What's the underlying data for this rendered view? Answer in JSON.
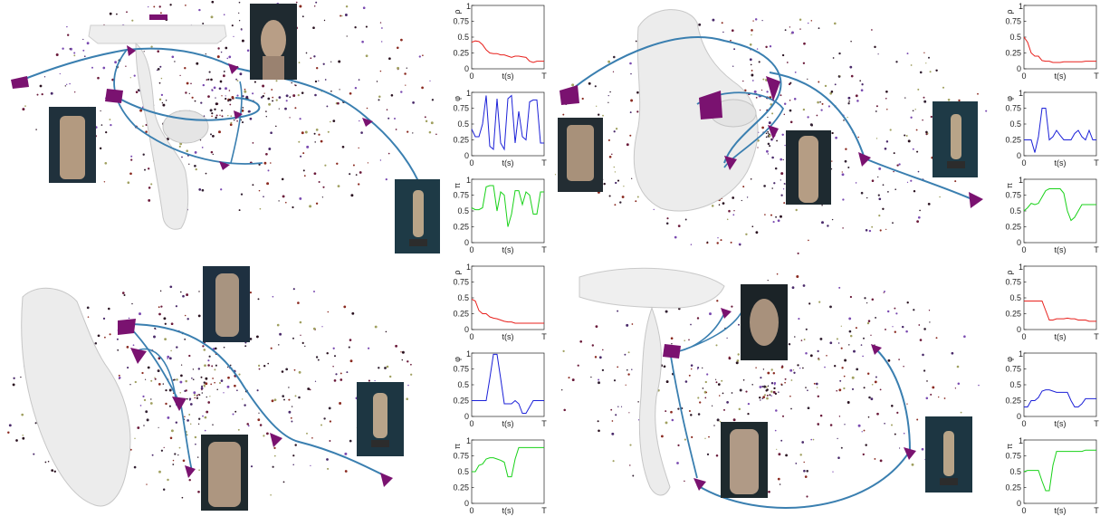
{
  "colors": {
    "rho": "#e8201c",
    "phi": "#1c21d8",
    "pi": "#19d219",
    "trajectory": "#3a7fb0",
    "camera": "#7a1270",
    "statue": "#ececec"
  },
  "axis": {
    "xlabel": "t(s)",
    "xticks": [
      "0",
      "T"
    ],
    "yticks": [
      "0",
      "0.25",
      "0.5",
      "0.75",
      "1"
    ]
  },
  "chart_data": [
    {
      "type": "line",
      "panel": "top-left",
      "x": [
        0,
        0.05,
        0.1,
        0.15,
        0.2,
        0.25,
        0.3,
        0.35,
        0.4,
        0.45,
        0.5,
        0.55,
        0.6,
        0.65,
        0.7,
        0.75,
        0.8,
        0.85,
        0.9,
        0.95,
        1
      ],
      "xlabel": "t(s)",
      "ylim": [
        0,
        1
      ],
      "series": [
        {
          "name": "ρ",
          "values": [
            0.42,
            0.44,
            0.43,
            0.38,
            0.3,
            0.25,
            0.24,
            0.24,
            0.22,
            0.22,
            0.2,
            0.18,
            0.2,
            0.2,
            0.19,
            0.18,
            0.12,
            0.1,
            0.12,
            0.12,
            0.12
          ]
        },
        {
          "name": "φ",
          "values": [
            0.42,
            0.3,
            0.3,
            0.5,
            0.95,
            0.15,
            0.1,
            0.9,
            0.2,
            0.1,
            0.9,
            0.95,
            0.2,
            0.7,
            0.3,
            0.25,
            0.85,
            0.88,
            0.88,
            0.2,
            0.2
          ]
        },
        {
          "name": "π",
          "values": [
            0.55,
            0.52,
            0.52,
            0.55,
            0.88,
            0.9,
            0.9,
            0.5,
            0.8,
            0.75,
            0.25,
            0.45,
            0.82,
            0.82,
            0.6,
            0.8,
            0.75,
            0.45,
            0.45,
            0.8,
            0.8
          ]
        }
      ]
    },
    {
      "type": "line",
      "panel": "top-right",
      "x": [
        0,
        0.05,
        0.1,
        0.15,
        0.2,
        0.25,
        0.3,
        0.35,
        0.4,
        0.45,
        0.5,
        0.55,
        0.6,
        0.65,
        0.7,
        0.75,
        0.8,
        0.85,
        0.9,
        0.95,
        1
      ],
      "xlabel": "t(s)",
      "ylim": [
        0,
        1
      ],
      "series": [
        {
          "name": "ρ",
          "values": [
            0.5,
            0.42,
            0.25,
            0.2,
            0.2,
            0.13,
            0.12,
            0.12,
            0.1,
            0.1,
            0.1,
            0.11,
            0.11,
            0.11,
            0.11,
            0.11,
            0.11,
            0.12,
            0.12,
            0.12,
            0.12
          ]
        },
        {
          "name": "φ",
          "values": [
            0.25,
            0.25,
            0.25,
            0.05,
            0.3,
            0.75,
            0.75,
            0.25,
            0.3,
            0.4,
            0.32,
            0.25,
            0.25,
            0.25,
            0.35,
            0.4,
            0.3,
            0.25,
            0.4,
            0.25,
            0.25
          ]
        },
        {
          "name": "π",
          "values": [
            0.5,
            0.55,
            0.62,
            0.6,
            0.62,
            0.72,
            0.82,
            0.85,
            0.85,
            0.85,
            0.85,
            0.78,
            0.5,
            0.35,
            0.4,
            0.5,
            0.6,
            0.6,
            0.6,
            0.6,
            0.6
          ]
        }
      ]
    },
    {
      "type": "line",
      "panel": "bottom-left",
      "x": [
        0,
        0.05,
        0.1,
        0.15,
        0.2,
        0.25,
        0.3,
        0.35,
        0.4,
        0.45,
        0.5,
        0.55,
        0.6,
        0.65,
        0.7,
        0.75,
        0.8,
        0.85,
        0.9,
        0.95,
        1
      ],
      "xlabel": "t(s)",
      "ylim": [
        0,
        1
      ],
      "series": [
        {
          "name": "ρ",
          "values": [
            0.48,
            0.45,
            0.3,
            0.25,
            0.25,
            0.2,
            0.18,
            0.17,
            0.15,
            0.13,
            0.12,
            0.12,
            0.1,
            0.1,
            0.1,
            0.1,
            0.1,
            0.1,
            0.1,
            0.1,
            0.1
          ]
        },
        {
          "name": "φ",
          "values": [
            0.25,
            0.25,
            0.25,
            0.25,
            0.25,
            0.6,
            0.98,
            0.98,
            0.6,
            0.2,
            0.2,
            0.2,
            0.25,
            0.2,
            0.05,
            0.05,
            0.15,
            0.25,
            0.25,
            0.25,
            0.25
          ]
        },
        {
          "name": "π",
          "values": [
            0.5,
            0.5,
            0.6,
            0.62,
            0.7,
            0.72,
            0.72,
            0.7,
            0.68,
            0.65,
            0.42,
            0.42,
            0.7,
            0.88,
            0.88,
            0.88,
            0.88,
            0.88,
            0.88,
            0.88,
            0.88
          ]
        }
      ]
    },
    {
      "type": "line",
      "panel": "bottom-right",
      "x": [
        0,
        0.05,
        0.1,
        0.15,
        0.2,
        0.25,
        0.3,
        0.35,
        0.4,
        0.45,
        0.5,
        0.55,
        0.6,
        0.65,
        0.7,
        0.75,
        0.8,
        0.85,
        0.9,
        0.95,
        1
      ],
      "xlabel": "t(s)",
      "ylim": [
        0,
        1
      ],
      "series": [
        {
          "name": "ρ",
          "values": [
            0.45,
            0.45,
            0.45,
            0.45,
            0.45,
            0.45,
            0.3,
            0.15,
            0.15,
            0.17,
            0.17,
            0.17,
            0.18,
            0.17,
            0.17,
            0.15,
            0.15,
            0.15,
            0.13,
            0.13,
            0.13
          ]
        },
        {
          "name": "φ",
          "values": [
            0.15,
            0.15,
            0.25,
            0.25,
            0.3,
            0.4,
            0.42,
            0.42,
            0.4,
            0.38,
            0.38,
            0.38,
            0.38,
            0.25,
            0.15,
            0.15,
            0.2,
            0.28,
            0.28,
            0.28,
            0.28
          ]
        },
        {
          "name": "π",
          "values": [
            0.5,
            0.52,
            0.52,
            0.52,
            0.52,
            0.35,
            0.2,
            0.2,
            0.6,
            0.82,
            0.82,
            0.82,
            0.82,
            0.82,
            0.82,
            0.82,
            0.82,
            0.84,
            0.84,
            0.84,
            0.84
          ]
        }
      ]
    }
  ]
}
